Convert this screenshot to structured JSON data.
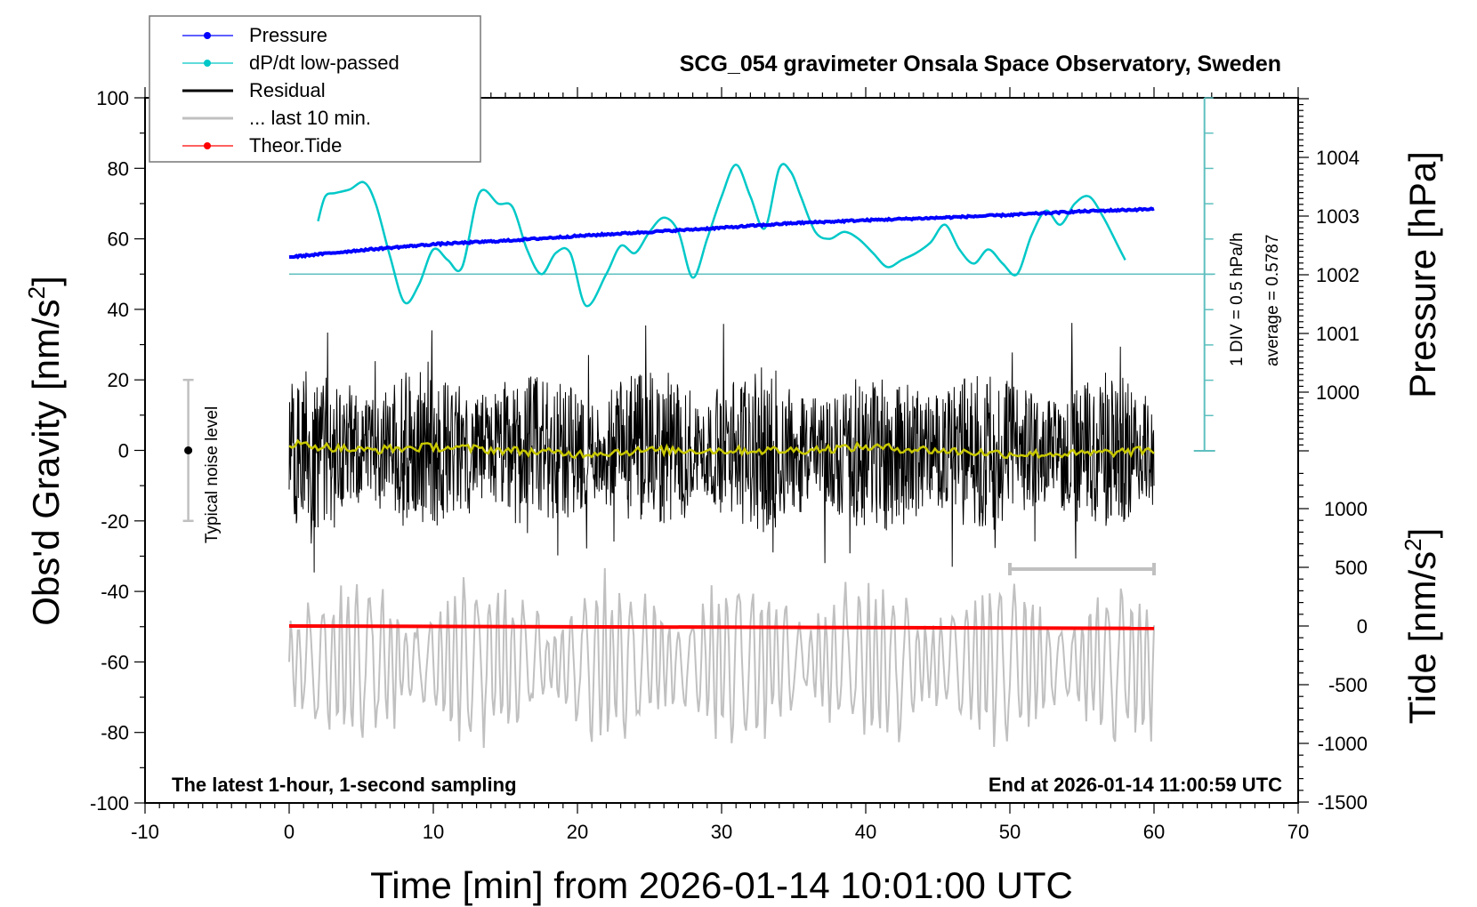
{
  "chart_data": {
    "type": "line",
    "title": "SCG_054 gravimeter Onsala Space Observatory, Sweden",
    "xlabel": "Time [min] from 2026-01-14 10:01:00 UTC",
    "ylabel_left": "Obs'd Gravity [nm/s",
    "ylabel_left_sup": "2",
    "ylabel_left_close": "]",
    "ylabel_right_pressure": "Pressure [hPa]",
    "ylabel_right_tide": "Tide [nm/s",
    "ylabel_right_tide_sup": "2",
    "ylabel_right_tide_close": "]",
    "xlim": [
      -10,
      70
    ],
    "ylim": [
      -100,
      100
    ],
    "x_ticks": [
      -10,
      0,
      10,
      20,
      30,
      40,
      50,
      60,
      70
    ],
    "y_ticks": [
      -100,
      -80,
      -60,
      -40,
      -20,
      0,
      20,
      40,
      60,
      80,
      100
    ],
    "pressure_axis": {
      "ticks": [
        1000,
        1001,
        1002,
        1003,
        1004
      ],
      "ylim": [
        997,
        1005
      ],
      "unit": "hPa"
    },
    "tide_axis": {
      "ticks": [
        -1500,
        -1000,
        -500,
        0,
        500,
        1000
      ],
      "ylim": [
        -1500,
        1500
      ],
      "unit": "nm/s^2"
    },
    "annotations": {
      "bottom_left": "The latest 1-hour, 1-second sampling",
      "bottom_right": "End at 2026-01-14 11:00:59 UTC",
      "dpdt_scale": "1 DIV = 0.5 hPa/h",
      "dpdt_average": "average = 0.5787",
      "noise_label": "Typical noise level",
      "noise_range": [
        -20,
        20
      ],
      "last10_bar_x": [
        50,
        60
      ]
    },
    "legend": {
      "placement": "top-left",
      "entries": [
        {
          "label": "Pressure",
          "color": "#0000ff",
          "marker": "dot"
        },
        {
          "label": "dP/dt low-passed",
          "color": "#00c8c8",
          "marker": "dot"
        },
        {
          "label": "Residual",
          "color": "#000000",
          "marker": "line"
        },
        {
          "label": "... last 10 min.",
          "color": "#c0c0c0",
          "marker": "line"
        },
        {
          "label": "Theor.Tide",
          "color": "#ff0000",
          "marker": "dot"
        }
      ]
    },
    "series": [
      {
        "name": "Pressure",
        "unit": "hPa",
        "color": "#0000ff",
        "x": [
          0,
          5,
          10,
          15,
          20,
          25,
          30,
          35,
          40,
          45,
          50,
          55,
          60
        ],
        "values": [
          1002.3,
          1002.42,
          1002.52,
          1002.58,
          1002.66,
          1002.73,
          1002.8,
          1002.88,
          1002.93,
          1002.97,
          1003.02,
          1003.08,
          1003.12
        ]
      },
      {
        "name": "dP/dt low-passed",
        "unit": "gravity-axis units (1 DIV = 0.5 hPa/h, zero at 50)",
        "color": "#00c8c8",
        "x": [
          2,
          2.5,
          3.2,
          4.2,
          5.2,
          6,
          7,
          8,
          9,
          10,
          11,
          12,
          13.2,
          14.5,
          15.5,
          16.5,
          17.5,
          18.5,
          19.5,
          20.6,
          22,
          23,
          24,
          25,
          26,
          27,
          28,
          29,
          30,
          31,
          32,
          33,
          34,
          34.8,
          35.5,
          36.5,
          37.5,
          38.5,
          39.5,
          40.5,
          41.5,
          42.5,
          43.5,
          44.5,
          45.5,
          46.5,
          47.5,
          48.5,
          49.5,
          50.5,
          51.5,
          52.5,
          53.5,
          54.5,
          55.5,
          56.5,
          57.5,
          58
        ],
        "values": [
          65,
          72,
          73,
          74,
          76,
          70,
          55,
          42,
          47,
          57,
          54,
          52,
          73,
          70,
          69,
          57,
          50,
          56,
          56,
          41,
          50,
          58,
          56,
          62,
          66,
          62,
          49,
          60,
          72,
          81,
          72,
          63,
          80,
          79,
          72,
          62,
          60,
          62,
          60,
          56,
          52,
          54,
          56,
          59,
          64,
          57,
          53,
          57,
          53,
          50,
          61,
          68,
          64,
          70,
          72,
          66,
          58,
          54
        ]
      },
      {
        "name": "Residual",
        "unit": "nm/s^2",
        "color": "#000000",
        "amplitude_envelope": [
          -36,
          40
        ],
        "typical_range": [
          -20,
          20
        ]
      },
      {
        "name": "Residual low-passed",
        "unit": "nm/s^2",
        "color": "#c8c800",
        "x": [
          0,
          5,
          10,
          15,
          20,
          25,
          30,
          35,
          40,
          45,
          50,
          55,
          60
        ],
        "values": [
          2,
          0,
          1,
          0,
          -1,
          0,
          0,
          0,
          1,
          0,
          -1,
          -1,
          0
        ]
      },
      {
        "name": "... last 10 min.",
        "unit": "nm/s^2 (offset, stretched over 0-60)",
        "color": "#c0c0c0",
        "baseline": -60,
        "amplitude_envelope": [
          -94,
          -29
        ]
      },
      {
        "name": "Theor.Tide",
        "unit": "nm/s^2",
        "color": "#ff0000",
        "x": [
          0,
          60
        ],
        "values": [
          0,
          -20
        ]
      }
    ],
    "grid": false
  }
}
